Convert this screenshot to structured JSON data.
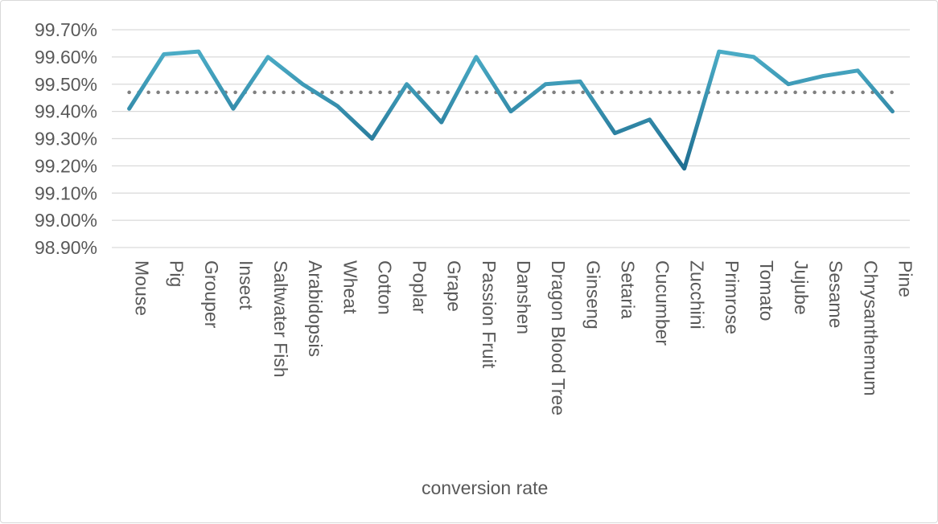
{
  "chart_data": {
    "type": "line",
    "categories": [
      "Mouse",
      "Pig",
      "Grouper",
      "Insect",
      "Saltwater Fish",
      "Arabidopsis",
      "Wheat",
      "Cotton",
      "Poplar",
      "Grape",
      "Passion Fruit",
      "Danshen",
      "Dragon Blood Tree",
      "Ginseng",
      "Setaria",
      "Cucumber",
      "Zucchini",
      "Primrose",
      "Tomato",
      "Jujube",
      "Sesame",
      "Chrysanthemum",
      "Pine"
    ],
    "series": [
      {
        "name": "conversion rate",
        "color_light": "#4bacc6",
        "color_dark": "#1f6e91",
        "values": [
          99.41,
          99.61,
          99.62,
          99.41,
          99.6,
          99.5,
          99.42,
          99.3,
          99.5,
          99.36,
          99.6,
          99.4,
          99.5,
          99.51,
          99.32,
          99.37,
          99.19,
          99.62,
          99.6,
          99.5,
          99.53,
          99.55,
          99.4
        ]
      }
    ],
    "average": {
      "value": 99.47,
      "color": "#808080",
      "style": "dotted"
    },
    "ylim": [
      98.9,
      99.7
    ],
    "yticks": [
      "99.70%",
      "99.60%",
      "99.50%",
      "99.40%",
      "99.30%",
      "99.20%",
      "99.10%",
      "99.00%",
      "98.90%"
    ],
    "ytick_values": [
      99.7,
      99.6,
      99.5,
      99.4,
      99.3,
      99.2,
      99.1,
      99.0,
      98.9
    ],
    "grid": true,
    "legend_position": "bottom",
    "title": "",
    "xlabel": "",
    "ylabel": ""
  }
}
